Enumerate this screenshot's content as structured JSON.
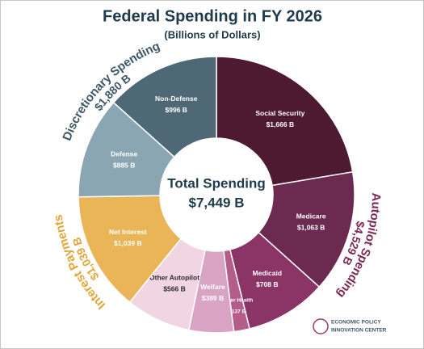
{
  "chart_data": {
    "type": "donut",
    "title": "Federal Spending in FY 2026",
    "subtitle": "(Billions of Dollars)",
    "categories": [
      "Social Security",
      "Medicare",
      "Medicaid",
      "Other Health",
      "Welfare",
      "Other Autopilot",
      "Net Interest",
      "Defense",
      "Non-Defense"
    ],
    "values": [
      1666,
      1063,
      708,
      137,
      389,
      566,
      1039,
      885,
      996
    ],
    "value_labels": [
      "$1,666 B",
      "$1,063 B",
      "$708 B",
      "$137 B",
      "$389 B",
      "$566 B",
      "$1,039 B",
      "$885 B",
      "$996 B"
    ],
    "colors": [
      "#4d1a31",
      "#6c2a50",
      "#8b3567",
      "#b45d8b",
      "#d9a3c3",
      "#f1d5e2",
      "#eab556",
      "#8ba6b3",
      "#4e6975"
    ],
    "groups": [
      {
        "name": "Autopilot Spending",
        "value": 4529,
        "value_label": "$4,529 B",
        "color": "#7a2a56"
      },
      {
        "name": "Interest Payments",
        "value": 1039,
        "value_label": "$1,039 B",
        "color": "#e3a63a"
      },
      {
        "name": "Discretionary Spending",
        "value": 1880,
        "value_label": "$1,880 B",
        "color": "#3e5866"
      }
    ],
    "total": {
      "label": "Total Spending",
      "value": 7449,
      "value_label": "$7,449 B"
    }
  },
  "logo": {
    "line1": "ECONOMIC POLICY",
    "line2": "INNOVATION CENTER"
  }
}
